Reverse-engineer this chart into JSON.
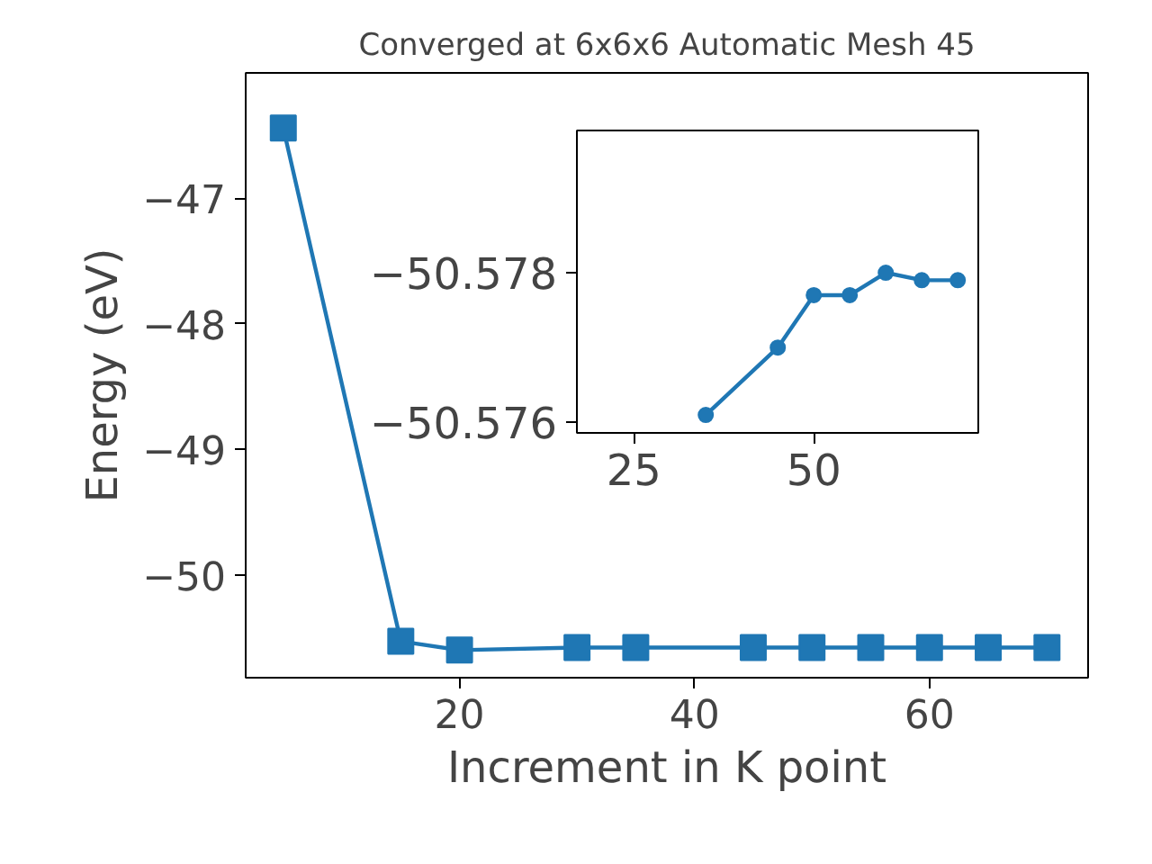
{
  "chart_data": [
    {
      "type": "line",
      "title": "Converged at 6x6x6 Automatic Mesh 45",
      "xlabel": "Increment in K point",
      "ylabel": "Energy (eV)",
      "marker": "square",
      "line_style": "solid",
      "x": [
        5,
        15,
        20,
        30,
        35,
        45,
        50,
        55,
        60,
        65,
        70
      ],
      "series": [
        {
          "color": "#1f77b4",
          "values": [
            -46.44,
            -50.53,
            -50.6,
            -50.58,
            -50.58,
            -50.58,
            -50.58,
            -50.58,
            -50.58,
            -50.58,
            -50.58
          ]
        }
      ],
      "xlim": [
        1.8,
        73.5
      ],
      "ylim": [
        -50.82,
        -46.0
      ],
      "xticks": [
        20,
        40,
        60
      ],
      "yticks": [
        {
          "value": -50,
          "label": "−50"
        },
        {
          "value": -49,
          "label": "−49"
        },
        {
          "value": -48,
          "label": "−48"
        },
        {
          "value": -47,
          "label": "−47"
        }
      ]
    },
    {
      "type": "line",
      "marker": "circle",
      "line_style": "solid",
      "x": [
        35,
        45,
        50,
        55,
        60,
        65,
        70
      ],
      "series": [
        {
          "color": "#1f77b4",
          "values": [
            -50.5761,
            -50.577,
            -50.5777,
            -50.5777,
            -50.578,
            -50.5779,
            -50.5779
          ]
        }
      ],
      "xlim": [
        17.1,
        73.1
      ],
      "ylim": [
        -50.57586,
        -50.5799
      ],
      "xticks": [
        25,
        50
      ],
      "yticks": [
        {
          "value": -50.576,
          "label": "−50.576"
        },
        {
          "value": -50.578,
          "label": "−50.578"
        }
      ]
    }
  ]
}
